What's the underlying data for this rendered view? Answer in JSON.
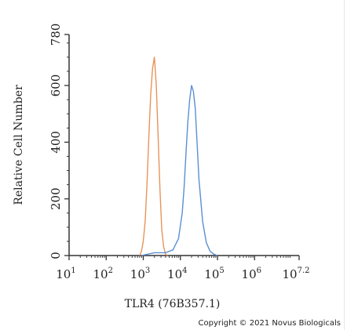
{
  "chart_data": {
    "type": "line",
    "title": "",
    "xlabel": "TLR4 (76B357.1)",
    "ylabel": "Relative Cell Number",
    "x_scale": "log10",
    "xlim": [
      1,
      7.2
    ],
    "ylim": [
      0,
      780
    ],
    "x_ticks": [
      {
        "base": "10",
        "exp": "1",
        "value": 1
      },
      {
        "base": "10",
        "exp": "2",
        "value": 2
      },
      {
        "base": "10",
        "exp": "3",
        "value": 3
      },
      {
        "base": "10",
        "exp": "4",
        "value": 4
      },
      {
        "base": "10",
        "exp": "5",
        "value": 5
      },
      {
        "base": "10",
        "exp": "6",
        "value": 6
      },
      {
        "base": "10",
        "exp": "7.2",
        "value": 7.2
      }
    ],
    "y_ticks": [
      "0",
      "200",
      "400",
      "600",
      "780"
    ],
    "y_tick_values": [
      0,
      200,
      400,
      600,
      780
    ],
    "series": [
      {
        "color": "#e8945a",
        "x": [
          2.9,
          2.95,
          3.0,
          3.05,
          3.1,
          3.15,
          3.2,
          3.25,
          3.3,
          3.35,
          3.4,
          3.45,
          3.5,
          3.55,
          3.6,
          3.65
        ],
        "y": [
          0,
          15,
          50,
          120,
          250,
          420,
          570,
          660,
          700,
          600,
          420,
          230,
          90,
          30,
          5,
          0
        ]
      },
      {
        "color": "#5b8fd1",
        "x": [
          2.95,
          3.3,
          3.6,
          3.8,
          3.95,
          4.05,
          4.1,
          4.15,
          4.2,
          4.25,
          4.3,
          4.35,
          4.4,
          4.45,
          4.5,
          4.6,
          4.7,
          4.8,
          4.9,
          5.0
        ],
        "y": [
          0,
          10,
          10,
          20,
          60,
          150,
          240,
          360,
          470,
          550,
          600,
          580,
          520,
          400,
          270,
          120,
          45,
          15,
          5,
          0
        ]
      }
    ]
  },
  "copyright": "Copyright © 2021 Novus Biologicals"
}
